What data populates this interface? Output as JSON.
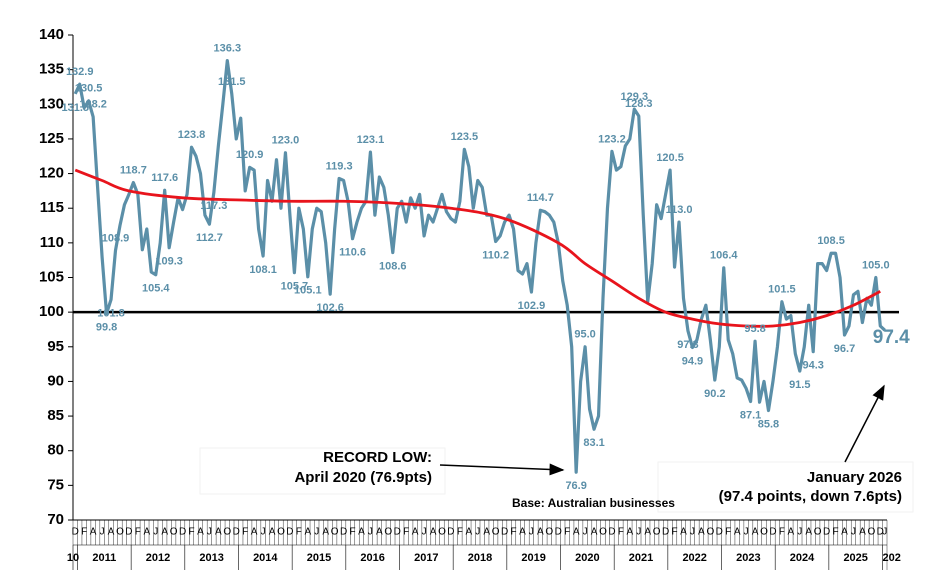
{
  "chart_data": {
    "type": "line",
    "ylim": [
      70,
      140
    ],
    "yticks": [
      70,
      75,
      80,
      85,
      90,
      95,
      100,
      105,
      110,
      115,
      120,
      125,
      130,
      135,
      140
    ],
    "reference_line": 100,
    "categories": [
      "D",
      null,
      "F",
      null,
      "A",
      null,
      "J",
      null,
      "A",
      null,
      "O",
      null,
      "D",
      null,
      "F",
      null,
      "A",
      null,
      "J",
      null,
      "A",
      null,
      "O",
      null,
      "D",
      null,
      "F",
      null,
      "A",
      null,
      "J",
      null,
      "A",
      null,
      "O",
      null,
      "D",
      null,
      "F",
      null,
      "A",
      null,
      "J",
      null,
      "A",
      null,
      "O",
      null,
      "D",
      null,
      "F",
      null,
      "A",
      null,
      "J",
      null,
      "A",
      null,
      "O",
      null,
      "D",
      null,
      "F",
      null,
      "A",
      null,
      "J",
      null,
      "A",
      null,
      "O",
      null,
      "D",
      null,
      "F",
      null,
      "A",
      null,
      "J",
      null,
      "A",
      null,
      "O",
      null,
      "D",
      null,
      "F",
      null,
      "A",
      null,
      "J",
      null,
      "A",
      null,
      "O",
      null,
      "D",
      null,
      "F",
      null,
      "A",
      null,
      "J",
      null,
      "A",
      null,
      "O",
      null,
      "D",
      null,
      "F",
      null,
      "A",
      null,
      "J",
      null,
      "A",
      null,
      "O",
      null,
      "D",
      null,
      "F",
      null,
      "A",
      null,
      "J",
      null,
      "A",
      null,
      "O",
      null,
      "D",
      null,
      "F",
      null,
      "A",
      null,
      "J",
      null,
      "A",
      null,
      "O",
      null,
      "D",
      null,
      "F",
      null,
      "A",
      null,
      "J",
      null,
      "A",
      null,
      "O",
      null,
      "D",
      null,
      "F",
      null,
      "A",
      null,
      "J",
      null,
      "A",
      null,
      "O",
      null,
      "D",
      null,
      "F",
      null,
      "A",
      null,
      "J",
      null,
      "A",
      null,
      "O",
      null,
      "D",
      "J"
    ],
    "year_labels": [
      "10",
      "2011",
      "2012",
      "2013",
      "2014",
      "2015",
      "2016",
      "2017",
      "2018",
      "2019",
      "2020",
      "2021",
      "2022",
      "2023",
      "2024",
      "2025",
      "202"
    ],
    "series": [
      {
        "color": "#5b8fa8",
        "values": [
          131.5,
          132.9,
          129.5,
          130.5,
          128.2,
          118,
          108,
          99.8,
          101.8,
          108.9,
          112.5,
          115.5,
          117,
          118.7,
          117,
          109,
          112,
          105.8,
          105.4,
          110,
          117.6,
          109.3,
          113,
          116.5,
          114.8,
          117,
          123.8,
          122.5,
          120,
          114,
          112.7,
          117.3,
          124,
          130,
          136.3,
          131.5,
          125,
          128,
          117.5,
          120.9,
          120.5,
          112,
          108.1,
          119,
          116,
          122,
          115,
          123.0,
          114,
          105.7,
          115,
          112,
          105.1,
          112,
          115,
          114.5,
          110,
          102.6,
          112,
          119.3,
          119,
          116,
          110.6,
          113,
          115,
          116,
          123.1,
          114,
          119.5,
          118,
          114,
          108.6,
          115,
          116,
          113,
          116.5,
          115,
          117,
          111,
          114,
          113,
          115,
          117,
          114.5,
          113.5,
          113,
          116,
          123.5,
          121,
          115,
          119,
          118,
          114,
          114,
          110.2,
          111,
          113,
          114,
          112,
          106,
          105.5,
          107,
          102.9,
          110,
          114.7,
          114.5,
          114,
          113,
          110,
          104.5,
          101,
          95,
          76.9,
          90,
          95,
          86,
          83.1,
          85,
          102,
          115,
          123.2,
          120.5,
          121,
          124,
          125,
          129.3,
          128.3,
          114,
          101.5,
          107,
          115.5,
          113.5,
          117,
          120.5,
          106.5,
          113.0,
          102,
          97.3,
          94.9,
          96,
          99,
          101,
          96,
          90.2,
          95,
          106.4,
          96,
          94,
          90.5,
          90.2,
          89,
          87.1,
          95.8,
          87,
          90,
          85.8,
          90,
          95,
          101.5,
          99,
          99.5,
          94,
          91.5,
          95,
          101,
          94.3,
          107,
          107,
          106,
          108.5,
          108.5,
          105,
          96.7,
          98,
          102.5,
          103,
          98.5,
          102,
          101,
          105.0,
          98,
          97.4
        ],
        "value_labels": [
          "131.5",
          "132.9",
          null,
          "130.5",
          "128.2",
          null,
          null,
          "99.8",
          "101.8",
          "108.9",
          null,
          null,
          null,
          "118.7",
          null,
          null,
          null,
          null,
          "105.4",
          null,
          "117.6",
          "109.3",
          null,
          null,
          null,
          null,
          "123.8",
          null,
          null,
          null,
          "112.7",
          "117.3",
          null,
          null,
          "136.3",
          "131.5",
          null,
          null,
          null,
          "120.9",
          null,
          null,
          "108.1",
          null,
          null,
          null,
          null,
          "123.0",
          null,
          "105.7",
          null,
          null,
          "105.1",
          null,
          null,
          null,
          null,
          "102.6",
          null,
          "119.3",
          null,
          null,
          "110.6",
          null,
          null,
          null,
          "123.1",
          null,
          null,
          null,
          null,
          "108.6",
          null,
          null,
          null,
          null,
          null,
          null,
          null,
          null,
          null,
          null,
          null,
          null,
          null,
          null,
          null,
          "123.5",
          null,
          null,
          null,
          null,
          null,
          null,
          "110.2",
          null,
          null,
          null,
          null,
          null,
          null,
          null,
          "102.9",
          null,
          "114.7",
          null,
          null,
          null,
          null,
          null,
          null,
          null,
          "76.9",
          null,
          "95.0",
          null,
          "83.1",
          null,
          null,
          null,
          "123.2",
          null,
          null,
          null,
          null,
          "129.3",
          "128.3",
          null,
          null,
          null,
          null,
          null,
          null,
          "120.5",
          null,
          "113.0",
          null,
          "97.3",
          "94.9",
          null,
          null,
          null,
          null,
          "90.2",
          null,
          "106.4",
          null,
          null,
          null,
          null,
          null,
          "87.1",
          "95.8",
          null,
          null,
          "85.8",
          null,
          null,
          "101.5",
          null,
          null,
          null,
          "91.5",
          null,
          null,
          "94.3",
          null,
          null,
          null,
          "108.5",
          null,
          null,
          "96.7",
          null,
          null,
          null,
          null,
          null,
          null,
          "105.0",
          null,
          "97.4"
        ]
      }
    ],
    "trend": {
      "color": "#e8141c",
      "x": [
        0,
        6,
        12,
        24,
        36,
        48,
        60,
        72,
        84,
        96,
        108,
        114,
        120,
        126,
        132,
        138,
        144,
        150,
        156,
        162,
        168,
        174,
        180
      ],
      "values": [
        120.5,
        119,
        117.5,
        116.5,
        116.2,
        116,
        116,
        115.7,
        115,
        113.5,
        110,
        107,
        104.5,
        102,
        100,
        99,
        98.3,
        98,
        98,
        98.5,
        99.5,
        101,
        103
      ]
    },
    "annotations": {
      "record_low": [
        "RECORD LOW:",
        "April 2020 (76.9pts)"
      ],
      "latest": [
        "January 2026",
        "(97.4 points, down 7.6pts)"
      ],
      "base": "Base: Australian businesses"
    }
  }
}
